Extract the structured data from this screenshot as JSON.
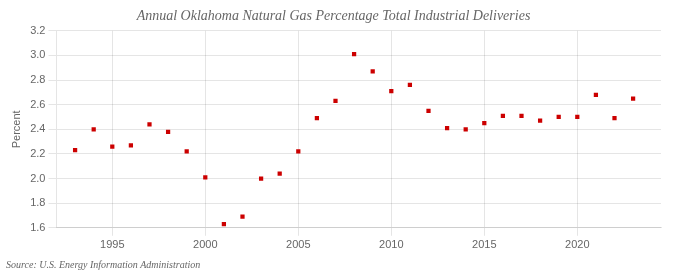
{
  "chart_data": {
    "type": "scatter",
    "title": "Annual Oklahoma Natural Gas Percentage Total Industrial Deliveries",
    "ylabel": "Percent",
    "source": "Source: U.S. Energy Information Administration",
    "x": [
      1993,
      1994,
      1995,
      1996,
      1997,
      1998,
      1999,
      2000,
      2001,
      2002,
      2003,
      2004,
      2005,
      2006,
      2007,
      2008,
      2009,
      2010,
      2011,
      2012,
      2013,
      2014,
      2015,
      2016,
      2017,
      2018,
      2019,
      2020,
      2021,
      2022,
      2023
    ],
    "values": [
      2.23,
      2.4,
      2.26,
      2.27,
      2.44,
      2.38,
      2.22,
      2.01,
      1.63,
      1.69,
      2.0,
      2.04,
      2.22,
      2.49,
      2.63,
      3.01,
      2.87,
      2.71,
      2.76,
      2.55,
      2.41,
      2.4,
      2.45,
      2.51,
      2.51,
      2.47,
      2.5,
      2.5,
      2.68,
      2.49,
      2.65
    ],
    "color": "#cc0000",
    "marker": "square",
    "grid": true,
    "xlim": [
      1992.0,
      2024.5
    ],
    "xticks": [
      1995,
      2000,
      2005,
      2010,
      2015,
      2020
    ],
    "ylim": [
      1.6,
      3.2
    ],
    "yticks": [
      1.6,
      1.8,
      {
        "value": 2.0,
        "label": "2.0"
      },
      2.2,
      2.4,
      2.6,
      2.8,
      {
        "value": 3.0,
        "label": "3.0"
      },
      3.2
    ]
  }
}
